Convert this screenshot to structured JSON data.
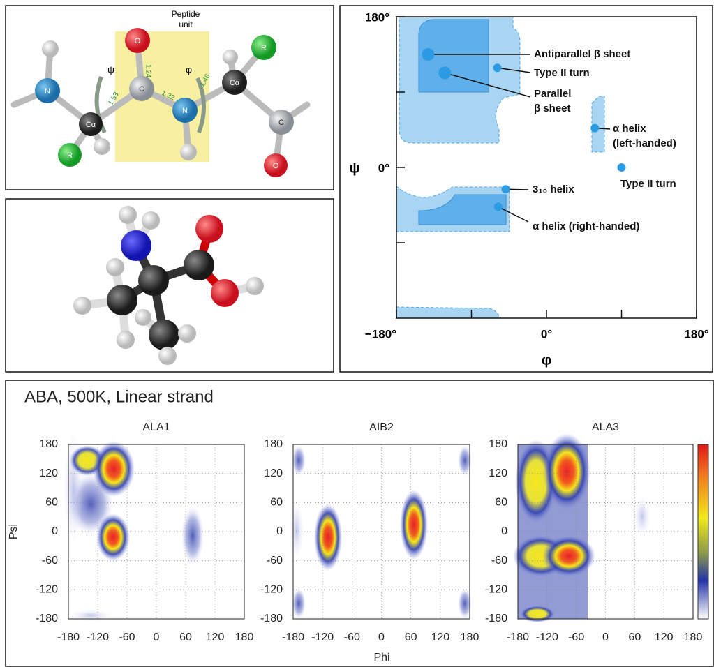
{
  "peptide_unit": {
    "title": [
      "Peptide",
      "unit"
    ],
    "atoms": [
      "N",
      "Cα",
      "R",
      "O",
      "C",
      "N",
      "Cα",
      "R",
      "C",
      "O"
    ],
    "angles": [
      "ψ",
      "φ"
    ],
    "bond_lengths": [
      "1.53",
      "1.24",
      "1.32",
      "1.46"
    ]
  },
  "heatmap_panel": {
    "title": "ABA, 500K, Linear strand",
    "xlabel": "Phi",
    "ylabel": "Psi"
  },
  "chart_data": [
    {
      "type": "scatter",
      "xlabel": "φ",
      "ylabel": "ψ",
      "x": [
        -142,
        -122,
        -59,
        58,
        90,
        -49,
        -58
      ],
      "values": [
        135,
        113,
        119,
        47,
        0,
        -26,
        -47
      ],
      "labels": [
        [
          "Antiparallel β sheet"
        ],
        [
          "Parallel",
          "β sheet"
        ],
        [
          "Type II turn"
        ],
        [
          "α helix",
          "(left-handed)"
        ],
        [
          "Type II turn"
        ],
        [
          "3₁₀ helix"
        ],
        [
          "α helix (right-handed)"
        ]
      ],
      "color": "#2b9be4",
      "xlim": [
        -180,
        180
      ],
      "ylim": [
        -180,
        180
      ],
      "xticks": [
        {
          "value": -180,
          "label": "−180°"
        },
        {
          "value": 0,
          "label": "0°"
        },
        {
          "value": 180,
          "label": "180°"
        }
      ],
      "xminorticks": [
        -90,
        90
      ],
      "yticks": [
        {
          "value": 0,
          "label": "0°"
        },
        {
          "value": 180,
          "label": "180°"
        }
      ],
      "yminorticks": [
        -90,
        90
      ]
    },
    {
      "type": "heatmap",
      "title": "ALA1",
      "xlim": [
        -180,
        180
      ],
      "ylim": [
        -180,
        180
      ],
      "xticks": [
        -180,
        -120,
        -60,
        0,
        60,
        120,
        180
      ],
      "yticks": [
        -180,
        -120,
        -60,
        0,
        60,
        120,
        180
      ],
      "grid": true
    },
    {
      "type": "heatmap",
      "title": "AIB2",
      "xlim": [
        -180,
        180
      ],
      "ylim": [
        -180,
        180
      ],
      "xticks": [
        -180,
        -120,
        -60,
        0,
        60,
        120,
        180
      ],
      "yticks": [
        -180,
        -120,
        -60,
        0,
        60,
        120,
        180
      ],
      "grid": true
    },
    {
      "type": "heatmap",
      "title": "ALA3",
      "xlim": [
        -180,
        180
      ],
      "ylim": [
        -180,
        180
      ],
      "xticks": [
        -180,
        -120,
        -60,
        0,
        60,
        120,
        180
      ],
      "yticks": [
        -180,
        -120,
        -60,
        0,
        60,
        120,
        180
      ],
      "grid": true
    }
  ]
}
